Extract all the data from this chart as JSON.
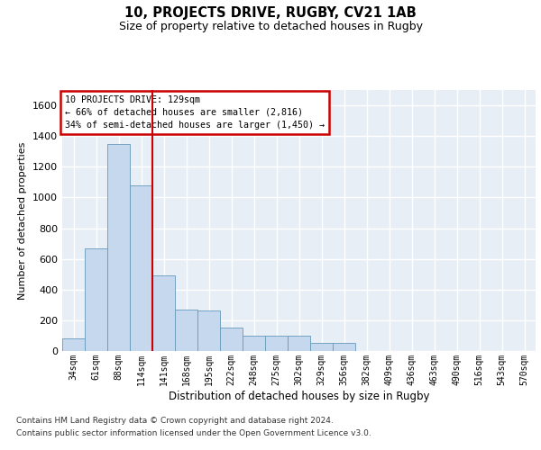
{
  "title1": "10, PROJECTS DRIVE, RUGBY, CV21 1AB",
  "title2": "Size of property relative to detached houses in Rugby",
  "xlabel": "Distribution of detached houses by size in Rugby",
  "ylabel": "Number of detached properties",
  "annotation_line1": "10 PROJECTS DRIVE: 129sqm",
  "annotation_line2": "← 66% of detached houses are smaller (2,816)",
  "annotation_line3": "34% of semi-detached houses are larger (1,450) →",
  "footer1": "Contains HM Land Registry data © Crown copyright and database right 2024.",
  "footer2": "Contains public sector information licensed under the Open Government Licence v3.0.",
  "bar_color": "#c5d8ed",
  "bar_edge_color": "#6699bb",
  "background_color": "#e8eef5",
  "grid_color": "#ffffff",
  "vline_color": "#cc0000",
  "annotation_box_edge_color": "#cc0000",
  "categories": [
    "34sqm",
    "61sqm",
    "88sqm",
    "114sqm",
    "141sqm",
    "168sqm",
    "195sqm",
    "222sqm",
    "248sqm",
    "275sqm",
    "302sqm",
    "329sqm",
    "356sqm",
    "382sqm",
    "409sqm",
    "436sqm",
    "463sqm",
    "490sqm",
    "516sqm",
    "543sqm",
    "570sqm"
  ],
  "values": [
    80,
    670,
    1350,
    1080,
    490,
    270,
    265,
    150,
    100,
    100,
    100,
    50,
    50,
    0,
    0,
    0,
    0,
    0,
    0,
    0,
    0
  ],
  "ylim": [
    0,
    1700
  ],
  "yticks": [
    0,
    200,
    400,
    600,
    800,
    1000,
    1200,
    1400,
    1600
  ],
  "vline_x": 3.5,
  "figsize": [
    6.0,
    5.0
  ],
  "dpi": 100
}
